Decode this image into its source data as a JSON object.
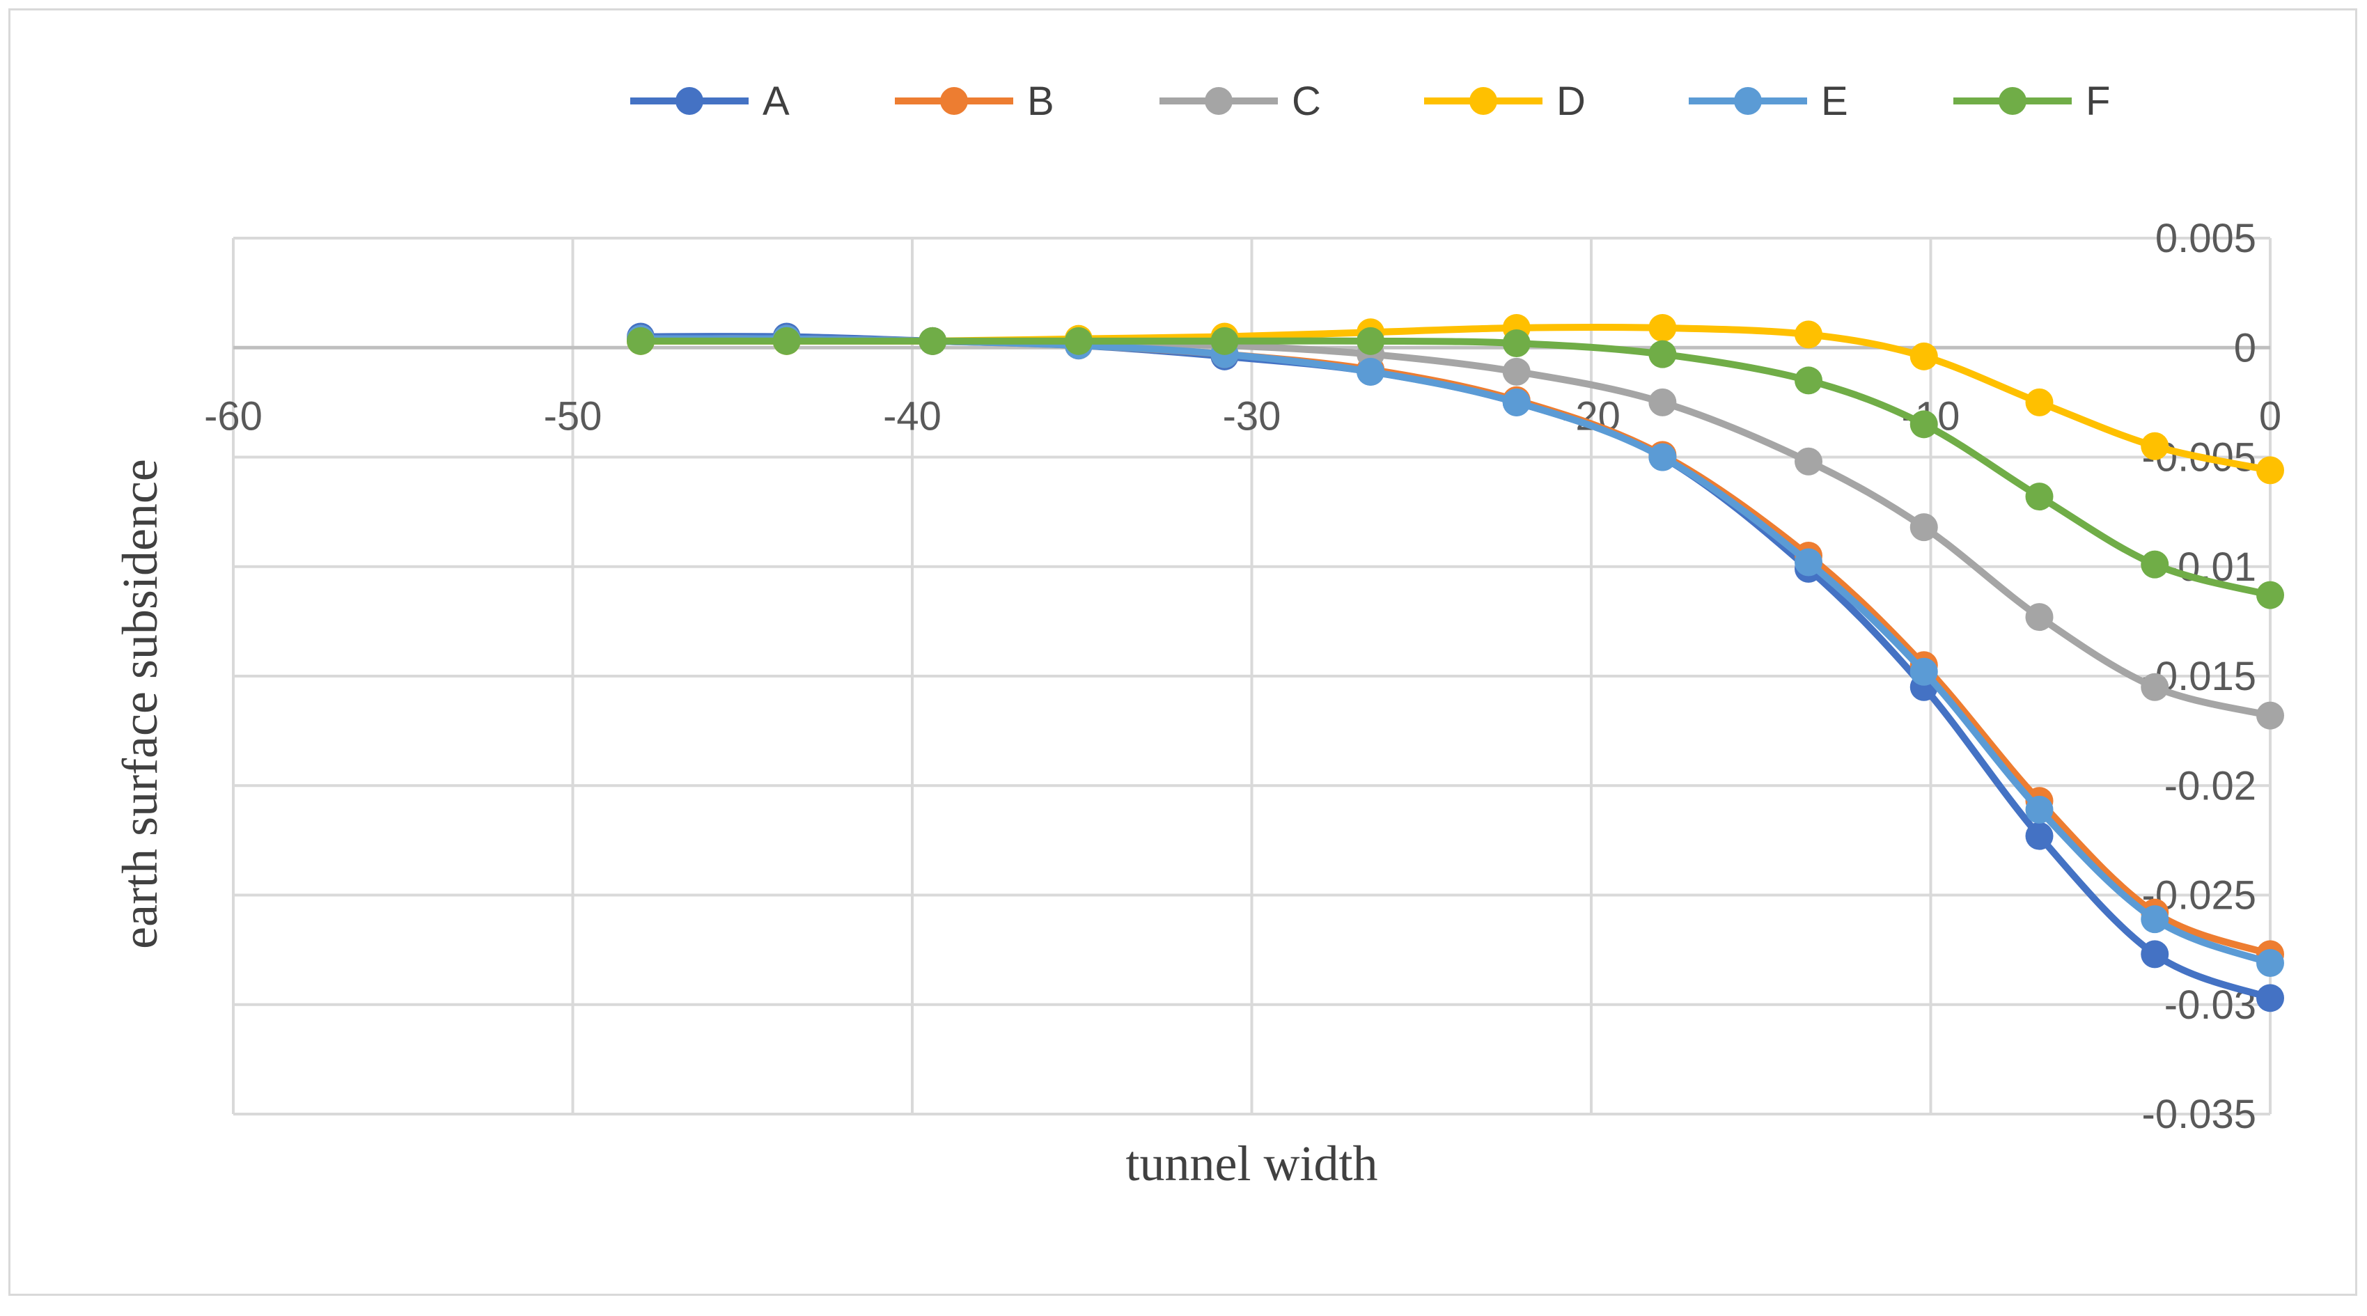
{
  "chart_data": {
    "type": "line",
    "title": "",
    "xlabel": "tunnel width",
    "ylabel": "earth surface subsidence",
    "xlim": [
      -60,
      0
    ],
    "ylim": [
      -0.035,
      0.005
    ],
    "x_ticks": [
      "-60",
      "-50",
      "-40",
      "-30",
      "-20",
      "-10",
      "0"
    ],
    "y_ticks": [
      "0.005",
      "0",
      "-0.005",
      "-0.01",
      "-0.015",
      "-0.02",
      "-0.025",
      "-0.03",
      "-0.035"
    ],
    "grid": true,
    "legend_position": "top",
    "x": [
      -48,
      -43.7,
      -39.4,
      -35.1,
      -30.8,
      -26.5,
      -22.2,
      -17.9,
      -13.6,
      -10.2,
      -6.8,
      -3.4,
      0
    ],
    "series": [
      {
        "name": "A",
        "color": "#4472c4",
        "values": [
          0.0005,
          0.0005,
          0.0003,
          0.0001,
          -0.0004,
          -0.0011,
          -0.0025,
          -0.005,
          -0.0101,
          -0.0155,
          -0.0223,
          -0.0277,
          -0.0297
        ]
      },
      {
        "name": "B",
        "color": "#ed7d31",
        "values": [
          0.0004,
          0.0004,
          0.0003,
          0.0001,
          -0.0003,
          -0.001,
          -0.0024,
          -0.0049,
          -0.0095,
          -0.0145,
          -0.0207,
          -0.0258,
          -0.0277
        ]
      },
      {
        "name": "C",
        "color": "#a5a5a5",
        "values": [
          0.0004,
          0.0004,
          0.0003,
          0.0002,
          0.0001,
          -0.0003,
          -0.0011,
          -0.0025,
          -0.0052,
          -0.0082,
          -0.0123,
          -0.0155,
          -0.0168
        ]
      },
      {
        "name": "D",
        "color": "#ffc000",
        "values": [
          0.0003,
          0.0003,
          0.0003,
          0.0004,
          0.0005,
          0.0007,
          0.0009,
          0.0009,
          0.0006,
          -0.0004,
          -0.0025,
          -0.0045,
          -0.0056
        ]
      },
      {
        "name": "E",
        "color": "#5b9bd5",
        "values": [
          0.0004,
          0.0004,
          0.0003,
          0.0001,
          -0.0003,
          -0.0011,
          -0.0025,
          -0.005,
          -0.0098,
          -0.0148,
          -0.0211,
          -0.0261,
          -0.0281
        ]
      },
      {
        "name": "F",
        "color": "#70ad47",
        "values": [
          0.0003,
          0.0003,
          0.0003,
          0.0003,
          0.0003,
          0.0003,
          0.0002,
          -0.0003,
          -0.0015,
          -0.0035,
          -0.0068,
          -0.0099,
          -0.0113
        ]
      }
    ]
  }
}
